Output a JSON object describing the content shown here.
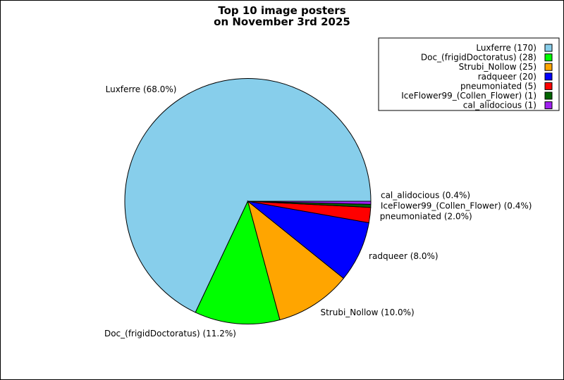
{
  "chart_data": {
    "type": "pie",
    "title_lines": [
      "Top 10 image posters",
      "on November 3rd 2025"
    ],
    "start_angle_deg": 0,
    "direction": "counterclockwise",
    "legend_placement": "top-right",
    "slices": [
      {
        "name": "Luxferre",
        "value": 170,
        "percent_label": "Luxferre (68.0%)",
        "legend_label": "Luxferre (170)",
        "color": "#87CEEB"
      },
      {
        "name": "Doc_(frigidDoctoratus)",
        "value": 28,
        "percent_label": "Doc_(frigidDoctoratus) (11.2%)",
        "legend_label": "Doc_(frigidDoctoratus) (28)",
        "color": "#00FF00"
      },
      {
        "name": "Strubi_Nollow",
        "value": 25,
        "percent_label": "Strubi_Nollow (10.0%)",
        "legend_label": "Strubi_Nollow (25)",
        "color": "#FFA500"
      },
      {
        "name": "radqueer",
        "value": 20,
        "percent_label": "radqueer (8.0%)",
        "legend_label": "radqueer (20)",
        "color": "#0000FF"
      },
      {
        "name": "pneumoniated",
        "value": 5,
        "percent_label": "pneumoniated (2.0%)",
        "legend_label": "pneumoniated (5)",
        "color": "#FF0000"
      },
      {
        "name": "IceFlower99_(Collen_Flower)",
        "value": 1,
        "percent_label": "IceFlower99_(Collen_Flower) (0.4%)",
        "legend_label": "IceFlower99_(Collen_Flower) (1)",
        "color": "#006400"
      },
      {
        "name": "cal_alidocious",
        "value": 1,
        "percent_label": "cal_alidocious (0.4%)",
        "legend_label": "cal_alidocious (1)",
        "color": "#A020F0"
      }
    ]
  }
}
